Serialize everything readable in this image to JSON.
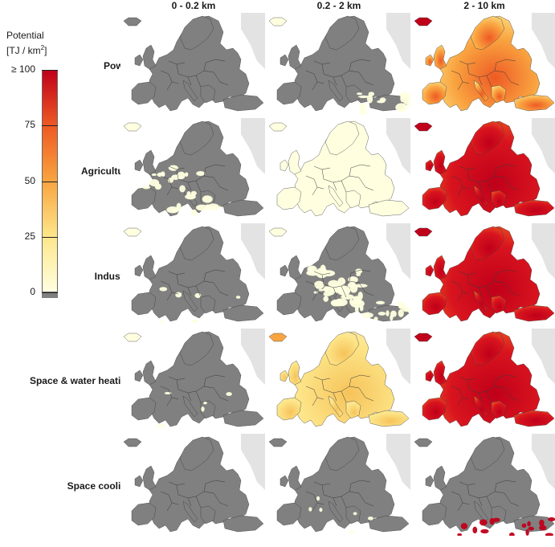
{
  "legend": {
    "title": "Potential",
    "unit_prefix": "[TJ / km",
    "unit_sup": "2",
    "unit_suffix": "]",
    "ticks": [
      "≥ 100",
      "75",
      "50",
      "25",
      "0"
    ],
    "colors": [
      "#ffffe0",
      "#fde68a",
      "#f9a440",
      "#ee5a24",
      "#c0001a"
    ],
    "no_data_color": "#7f7f7f"
  },
  "columns": [
    "0 - 0.2 km",
    "0.2 - 2 km",
    "2 - 10 km"
  ],
  "rows": [
    "Power",
    "Agriculture",
    "Industry",
    "Space & water heating",
    "Space cooling"
  ],
  "map_colors": {
    "land_gray": "#808080",
    "outside": "#e3e3e3",
    "sea": "#ffffff",
    "border": "#3a3a3a"
  },
  "panels": [
    [
      "gray",
      "gray-south-pale",
      "orange-mixed"
    ],
    [
      "pale-patchy",
      "pale-wide",
      "red-dominant"
    ],
    [
      "gray-mostly",
      "pale-central",
      "red-dominant"
    ],
    [
      "gray-mostly",
      "yellow-wide",
      "red-dominant"
    ],
    [
      "gray",
      "gray-few-pale",
      "gray-south-red"
    ]
  ]
}
